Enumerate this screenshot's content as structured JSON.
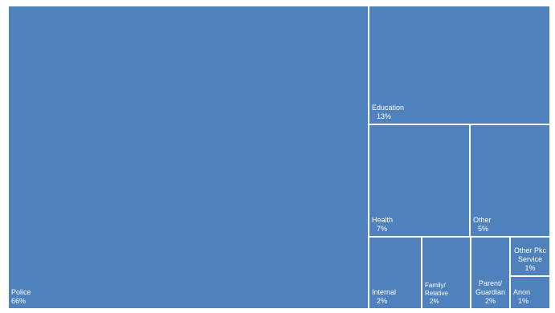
{
  "chart_data": {
    "type": "treemap",
    "color": "#4f81bd",
    "title": "",
    "categories": [
      "Police",
      "Education",
      "Health",
      "Other",
      "Internal",
      "Family/ Relative",
      "Parent/ Guardian",
      "Other Pkc Service",
      "Anon"
    ],
    "values": [
      66,
      13,
      7,
      5,
      2,
      2,
      2,
      1,
      1
    ],
    "labels": [
      {
        "name": "Police",
        "pct": "66%"
      },
      {
        "name": "Education",
        "pct": "13%"
      },
      {
        "name": "Health",
        "pct": "7%"
      },
      {
        "name": "Other",
        "pct": "5%"
      },
      {
        "name": "Internal",
        "pct": "2%"
      },
      {
        "name": "Family/ Relative",
        "pct": "2%"
      },
      {
        "name": "Parent/ Guardian",
        "pct": "2%"
      },
      {
        "name": "Other Pkc Service",
        "pct": "1%"
      },
      {
        "name": "Anon",
        "pct": "1%"
      }
    ]
  }
}
